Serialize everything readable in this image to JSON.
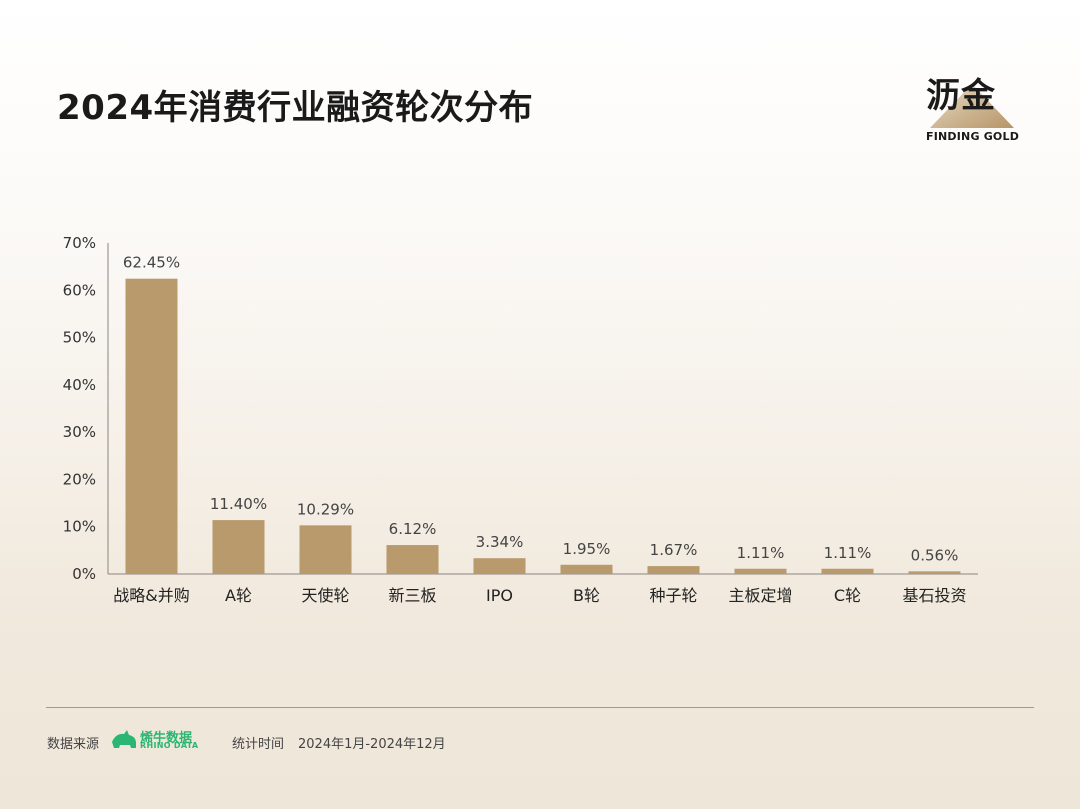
{
  "header": {
    "title": "2024年消费行业融资轮次分布"
  },
  "logo": {
    "name": "沥金",
    "subtitle": "FINDING GOLD"
  },
  "footer": {
    "source_label": "数据来源",
    "source_brand": "烯牛数据",
    "source_brand_en": "RHINO DATA",
    "period_label": "统计时间",
    "period_value": "2024年1月-2024年12月"
  },
  "colors": {
    "bar": "#b89a6c",
    "axis": "#8a8580",
    "brand_green": "#2bb673"
  },
  "chart_data": {
    "type": "bar",
    "categories": [
      "战略&并购",
      "A轮",
      "天使轮",
      "新三板",
      "IPO",
      "B轮",
      "种子轮",
      "主板定增",
      "C轮",
      "基石投资"
    ],
    "values": [
      62.45,
      11.4,
      10.29,
      6.12,
      3.34,
      1.95,
      1.67,
      1.11,
      1.11,
      0.56
    ],
    "value_labels": [
      "62.45%",
      "11.40%",
      "10.29%",
      "6.12%",
      "3.34%",
      "1.95%",
      "1.67%",
      "1.11%",
      "1.11%",
      "0.56%"
    ],
    "yticks": [
      0,
      10,
      20,
      30,
      40,
      50,
      60,
      70
    ],
    "ytick_labels": [
      "0%",
      "10%",
      "20%",
      "30%",
      "40%",
      "50%",
      "60%",
      "70%"
    ],
    "ylim": [
      0,
      70
    ],
    "grid": false
  }
}
